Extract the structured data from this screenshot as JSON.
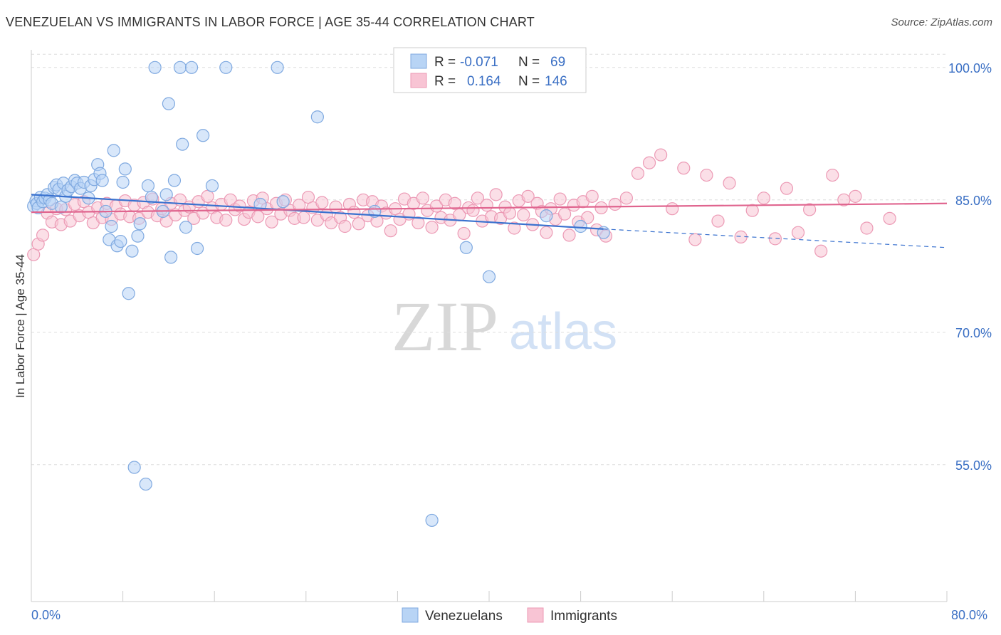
{
  "title": "VENEZUELAN VS IMMIGRANTS IN LABOR FORCE | AGE 35-44 CORRELATION CHART",
  "source": "Source: ZipAtlas.com",
  "watermark": {
    "zip": "ZIP",
    "atlas": "atlas"
  },
  "legend_stats": {
    "r_label": "R =",
    "n_label": "N =",
    "rows": [
      {
        "r": "-0.071",
        "n": "69"
      },
      {
        "r": "0.164",
        "n": "146"
      }
    ]
  },
  "colors": {
    "venezuelans_fill": "#b8d4f5",
    "venezuelans_stroke": "#7fa9e0",
    "venezuelans_line": "#3a72cf",
    "immigrants_fill": "#f8c4d4",
    "immigrants_stroke": "#ec9ab5",
    "immigrants_line": "#e0658f",
    "tick_text": "#3a6fc4",
    "grid": "#dddddd"
  },
  "chart_data": {
    "type": "scatter",
    "title": "VENEZUELAN VS IMMIGRANTS IN LABOR FORCE | AGE 35-44 CORRELATION CHART",
    "xlabel": "",
    "ylabel": "In Labor Force | Age 35-44",
    "xlim": [
      0,
      80
    ],
    "ylim": [
      39.5,
      102
    ],
    "x_tick_labels": [
      "0.0%",
      "80.0%"
    ],
    "y_ticks": [
      100,
      85,
      70,
      55
    ],
    "y_tick_labels": [
      "100.0%",
      "85.0%",
      "70.0%",
      "55.0%"
    ],
    "grid": "horizontal dashed",
    "legend_position": "top-center",
    "series": [
      {
        "name": "Venezuelans",
        "r": -0.071,
        "n": 69,
        "trend": {
          "x0": 0,
          "y0": 85.6,
          "x1": 50,
          "y1": 81.7,
          "x_dash_end": 80,
          "y_dash_end": 79.6
        },
        "points": [
          [
            0.2,
            84.3
          ],
          [
            0.4,
            84.9
          ],
          [
            0.5,
            84.6
          ],
          [
            0.6,
            84.1
          ],
          [
            0.8,
            85.3
          ],
          [
            1.0,
            84.8
          ],
          [
            1.2,
            85.2
          ],
          [
            1.4,
            85.6
          ],
          [
            1.6,
            85.0
          ],
          [
            1.8,
            84.6
          ],
          [
            2.0,
            86.4
          ],
          [
            2.2,
            86.7
          ],
          [
            2.4,
            86.2
          ],
          [
            2.6,
            84.2
          ],
          [
            2.8,
            86.9
          ],
          [
            3.0,
            85.4
          ],
          [
            3.2,
            86.1
          ],
          [
            3.5,
            86.5
          ],
          [
            3.8,
            87.2
          ],
          [
            4.0,
            86.9
          ],
          [
            4.3,
            86.3
          ],
          [
            4.6,
            87.0
          ],
          [
            5.0,
            85.2
          ],
          [
            5.2,
            86.6
          ],
          [
            5.5,
            87.3
          ],
          [
            5.8,
            89.0
          ],
          [
            6.0,
            88.0
          ],
          [
            6.2,
            87.2
          ],
          [
            6.5,
            83.7
          ],
          [
            6.8,
            80.5
          ],
          [
            7.0,
            82.0
          ],
          [
            7.2,
            90.6
          ],
          [
            7.5,
            79.8
          ],
          [
            7.8,
            80.3
          ],
          [
            8.0,
            87.0
          ],
          [
            8.2,
            88.5
          ],
          [
            8.5,
            74.4
          ],
          [
            8.8,
            79.2
          ],
          [
            9.0,
            54.7
          ],
          [
            9.3,
            80.9
          ],
          [
            9.5,
            82.3
          ],
          [
            10.0,
            52.8
          ],
          [
            10.2,
            86.6
          ],
          [
            10.5,
            85.3
          ],
          [
            10.8,
            100.0
          ],
          [
            11.5,
            83.7
          ],
          [
            11.8,
            85.6
          ],
          [
            12.0,
            95.9
          ],
          [
            12.2,
            78.5
          ],
          [
            12.5,
            87.2
          ],
          [
            13.0,
            100.0
          ],
          [
            13.2,
            91.3
          ],
          [
            13.5,
            81.9
          ],
          [
            14.0,
            100.0
          ],
          [
            14.5,
            79.5
          ],
          [
            15.0,
            92.3
          ],
          [
            15.8,
            86.6
          ],
          [
            17.0,
            100.0
          ],
          [
            20.0,
            84.5
          ],
          [
            21.5,
            100.0
          ],
          [
            22.0,
            84.8
          ],
          [
            25.0,
            94.4
          ],
          [
            30.0,
            83.7
          ],
          [
            35.0,
            48.7
          ],
          [
            38.0,
            79.6
          ],
          [
            40.0,
            76.3
          ],
          [
            45.0,
            83.2
          ],
          [
            48.0,
            82.0
          ],
          [
            50.0,
            81.3
          ]
        ]
      },
      {
        "name": "Immigrants",
        "r": 0.164,
        "n": 146,
        "trend": {
          "x0": 0,
          "y0": 83.6,
          "x1": 80,
          "y1": 84.6
        },
        "points": [
          [
            0.2,
            78.8
          ],
          [
            0.6,
            80.0
          ],
          [
            1.0,
            81.0
          ],
          [
            1.4,
            83.5
          ],
          [
            1.8,
            82.5
          ],
          [
            2.2,
            84.0
          ],
          [
            2.6,
            82.2
          ],
          [
            3.0,
            83.9
          ],
          [
            3.4,
            82.6
          ],
          [
            3.8,
            84.5
          ],
          [
            4.2,
            83.2
          ],
          [
            4.6,
            84.8
          ],
          [
            5.0,
            83.6
          ],
          [
            5.4,
            82.4
          ],
          [
            5.8,
            84.1
          ],
          [
            6.2,
            83.0
          ],
          [
            6.6,
            84.6
          ],
          [
            7.0,
            82.8
          ],
          [
            7.4,
            84.3
          ],
          [
            7.8,
            83.4
          ],
          [
            8.2,
            84.9
          ],
          [
            8.6,
            83.1
          ],
          [
            9.0,
            84.4
          ],
          [
            9.4,
            82.9
          ],
          [
            9.8,
            84.7
          ],
          [
            10.2,
            83.6
          ],
          [
            10.6,
            85.1
          ],
          [
            11.0,
            83.2
          ],
          [
            11.4,
            84.0
          ],
          [
            11.8,
            82.6
          ],
          [
            12.2,
            84.6
          ],
          [
            12.6,
            83.3
          ],
          [
            13.0,
            85.0
          ],
          [
            13.4,
            83.8
          ],
          [
            13.8,
            84.2
          ],
          [
            14.2,
            82.9
          ],
          [
            14.6,
            84.8
          ],
          [
            15.0,
            83.5
          ],
          [
            15.4,
            85.4
          ],
          [
            15.8,
            84.1
          ],
          [
            16.2,
            83.0
          ],
          [
            16.6,
            84.5
          ],
          [
            17.0,
            82.7
          ],
          [
            17.4,
            85.0
          ],
          [
            17.8,
            83.9
          ],
          [
            18.2,
            84.3
          ],
          [
            18.6,
            82.8
          ],
          [
            19.0,
            83.6
          ],
          [
            19.4,
            84.9
          ],
          [
            19.8,
            83.1
          ],
          [
            20.2,
            85.2
          ],
          [
            20.6,
            84.0
          ],
          [
            21.0,
            82.5
          ],
          [
            21.4,
            84.6
          ],
          [
            21.8,
            83.4
          ],
          [
            22.2,
            85.0
          ],
          [
            22.6,
            83.8
          ],
          [
            23.0,
            82.9
          ],
          [
            23.4,
            84.4
          ],
          [
            23.8,
            83.0
          ],
          [
            24.2,
            85.3
          ],
          [
            24.6,
            84.1
          ],
          [
            25.0,
            82.7
          ],
          [
            25.4,
            84.7
          ],
          [
            25.8,
            83.3
          ],
          [
            26.2,
            82.4
          ],
          [
            26.6,
            84.2
          ],
          [
            27.0,
            83.0
          ],
          [
            27.4,
            82.0
          ],
          [
            27.8,
            84.5
          ],
          [
            28.2,
            83.6
          ],
          [
            28.6,
            82.3
          ],
          [
            29.0,
            85.0
          ],
          [
            29.4,
            83.2
          ],
          [
            29.8,
            84.8
          ],
          [
            30.2,
            82.6
          ],
          [
            30.6,
            84.3
          ],
          [
            31.0,
            83.5
          ],
          [
            31.4,
            81.5
          ],
          [
            31.8,
            84.0
          ],
          [
            32.2,
            82.8
          ],
          [
            32.6,
            85.1
          ],
          [
            33.0,
            83.4
          ],
          [
            33.4,
            84.6
          ],
          [
            33.8,
            82.4
          ],
          [
            34.2,
            85.2
          ],
          [
            34.6,
            83.8
          ],
          [
            35.0,
            81.9
          ],
          [
            35.4,
            84.3
          ],
          [
            35.8,
            83.0
          ],
          [
            36.2,
            85.0
          ],
          [
            36.6,
            82.7
          ],
          [
            37.0,
            84.6
          ],
          [
            37.4,
            83.3
          ],
          [
            37.8,
            81.2
          ],
          [
            38.2,
            84.1
          ],
          [
            38.6,
            83.8
          ],
          [
            39.0,
            85.2
          ],
          [
            39.4,
            82.6
          ],
          [
            39.8,
            84.4
          ],
          [
            40.2,
            83.1
          ],
          [
            40.6,
            85.6
          ],
          [
            41.0,
            82.9
          ],
          [
            41.4,
            84.2
          ],
          [
            41.8,
            83.5
          ],
          [
            42.2,
            81.8
          ],
          [
            42.6,
            84.9
          ],
          [
            43.0,
            83.3
          ],
          [
            43.4,
            85.4
          ],
          [
            43.8,
            82.2
          ],
          [
            44.2,
            84.6
          ],
          [
            44.6,
            83.7
          ],
          [
            45.0,
            81.3
          ],
          [
            45.4,
            84.0
          ],
          [
            45.8,
            82.8
          ],
          [
            46.2,
            85.1
          ],
          [
            46.6,
            83.4
          ],
          [
            47.0,
            81.0
          ],
          [
            47.4,
            84.4
          ],
          [
            47.8,
            82.5
          ],
          [
            48.2,
            84.8
          ],
          [
            48.6,
            83.0
          ],
          [
            49.0,
            85.4
          ],
          [
            49.4,
            81.6
          ],
          [
            49.8,
            84.1
          ],
          [
            50.2,
            80.9
          ],
          [
            51.0,
            84.5
          ],
          [
            52.0,
            85.2
          ],
          [
            53.0,
            88.0
          ],
          [
            54.0,
            89.2
          ],
          [
            55.0,
            90.1
          ],
          [
            56.0,
            84.0
          ],
          [
            57.0,
            88.6
          ],
          [
            58.0,
            80.5
          ],
          [
            59.0,
            87.8
          ],
          [
            60.0,
            82.6
          ],
          [
            61.0,
            86.9
          ],
          [
            62.0,
            80.8
          ],
          [
            63.0,
            83.8
          ],
          [
            64.0,
            85.2
          ],
          [
            65.0,
            80.6
          ],
          [
            66.0,
            86.3
          ],
          [
            67.0,
            81.3
          ],
          [
            68.0,
            83.9
          ],
          [
            69.0,
            79.2
          ],
          [
            70.0,
            87.8
          ],
          [
            71.0,
            85.0
          ],
          [
            72.0,
            85.4
          ],
          [
            73.0,
            81.8
          ],
          [
            75.0,
            82.9
          ]
        ]
      }
    ]
  },
  "bottom_legend": [
    "Venezuelans",
    "Immigrants"
  ]
}
